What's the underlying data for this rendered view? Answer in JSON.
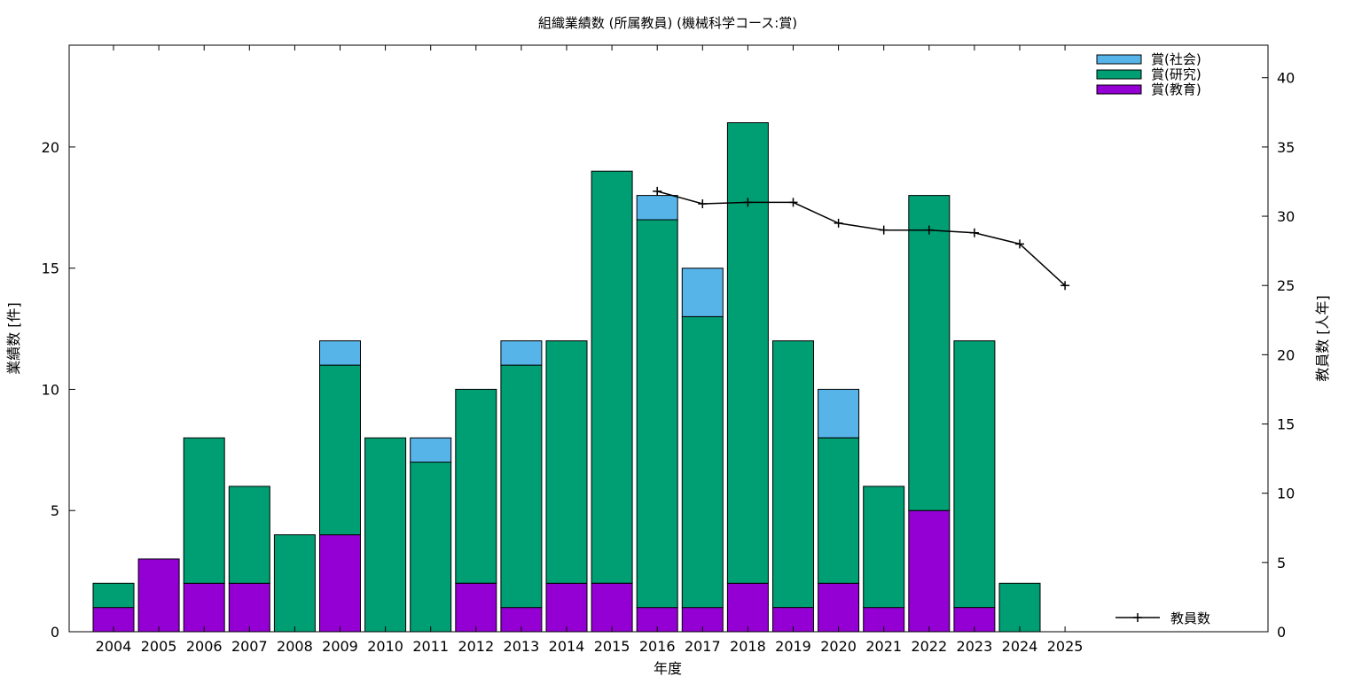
{
  "chart_data": {
    "type": "bar",
    "title": "組織業績数 (所属教員) (機械科学コース:賞)",
    "xlabel": "年度",
    "ylabel": "業績数 [件]",
    "y2label": "教員数 [人年]",
    "categories": [
      "2004",
      "2005",
      "2006",
      "2007",
      "2008",
      "2009",
      "2010",
      "2011",
      "2012",
      "2013",
      "2014",
      "2015",
      "2016",
      "2017",
      "2018",
      "2019",
      "2020",
      "2021",
      "2022",
      "2023",
      "2024",
      "2025"
    ],
    "ylim": [
      0,
      24.2
    ],
    "y_ticks": [
      0,
      5,
      10,
      15,
      20
    ],
    "y2lim": [
      0,
      42.35
    ],
    "y2_ticks": [
      0,
      5,
      10,
      15,
      20,
      25,
      30,
      35,
      40
    ],
    "stacked": true,
    "series": [
      {
        "name": "賞(教育)",
        "color": "#9400d3",
        "values": [
          1,
          3,
          2,
          2,
          0,
          4,
          0,
          0,
          2,
          1,
          2,
          2,
          1,
          1,
          2,
          1,
          2,
          1,
          5,
          1,
          0,
          0
        ]
      },
      {
        "name": "賞(研究)",
        "color": "#009e73",
        "values": [
          1,
          0,
          6,
          4,
          4,
          7,
          8,
          7,
          8,
          10,
          10,
          17,
          16,
          12,
          19,
          11,
          6,
          5,
          13,
          11,
          2,
          0
        ]
      },
      {
        "name": "賞(社会)",
        "color": "#56b4e9",
        "values": [
          0,
          0,
          0,
          0,
          0,
          1,
          0,
          1,
          0,
          1,
          0,
          0,
          1,
          2,
          0,
          0,
          2,
          0,
          0,
          0,
          0,
          0
        ]
      }
    ],
    "line_series": {
      "name": "教員数",
      "color": "#000000",
      "axis": "y2",
      "x": [
        "2016",
        "2017",
        "2018",
        "2019",
        "2020",
        "2021",
        "2022",
        "2023",
        "2024",
        "2025"
      ],
      "values": [
        31.8,
        30.9,
        31.0,
        31.0,
        29.5,
        29.0,
        29.0,
        28.8,
        28.0,
        25.0
      ]
    },
    "grid": false,
    "legend_position": "top-right"
  }
}
